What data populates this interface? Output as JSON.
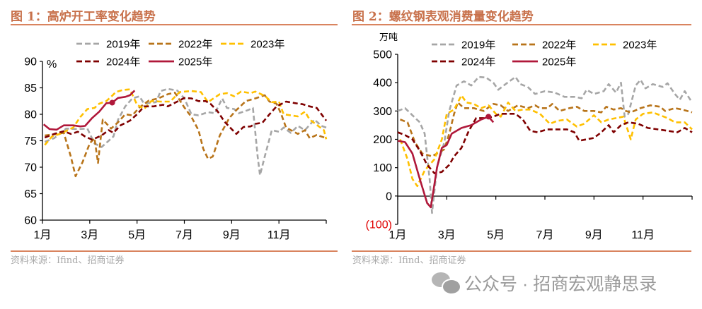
{
  "colors": {
    "2019": "#a6a6a6",
    "2022": "#b8741a",
    "2023": "#ffc000",
    "2024": "#7f0000",
    "2025": "#b0183a",
    "accent": "#c8714b",
    "negative_label": "#e00000"
  },
  "watermark": {
    "icon": "wechat-icon",
    "text": "公众号 · 招商宏观静思录"
  },
  "chart_data": [
    {
      "type": "line",
      "title": "图 1：高炉开工率变化趋势",
      "source": "资料来源：Ifind、招商证券",
      "ylabel": "%",
      "ylim": [
        60,
        90
      ],
      "yticks": [
        "60",
        "65",
        "70",
        "75",
        "80",
        "85",
        "90"
      ],
      "xlim": [
        1,
        13
      ],
      "xticks": [
        {
          "v": 1,
          "label": "1月"
        },
        {
          "v": 3,
          "label": "3月"
        },
        {
          "v": 5,
          "label": "5月"
        },
        {
          "v": 7,
          "label": "7月"
        },
        {
          "v": 9,
          "label": "9月"
        },
        {
          "v": 11,
          "label": "11月"
        }
      ],
      "legend": "top",
      "series": [
        {
          "name": "2019年",
          "key": "2019",
          "dash": true,
          "x": [
            1.1,
            1.5,
            2.0,
            2.5,
            2.9,
            3.2,
            3.5,
            3.8,
            4.0,
            4.2,
            4.5,
            4.8,
            5.1,
            5.3,
            5.8,
            6.0,
            6.3,
            6.7,
            7.0,
            7.3,
            7.6,
            8.0,
            8.3,
            8.6,
            8.8,
            9.1,
            9.3,
            9.7,
            9.9,
            10.1,
            10.2,
            10.4,
            10.7,
            11.0,
            11.2,
            11.5,
            11.8,
            12.1,
            12.5,
            12.8,
            13.0
          ],
          "y": [
            74.8,
            75.5,
            77.3,
            77.2,
            77.3,
            74.5,
            73.8,
            75,
            75.8,
            79,
            81.5,
            83,
            83.4,
            82,
            82.3,
            84.4,
            84.8,
            84.5,
            83,
            80,
            79.8,
            80.4,
            80.2,
            83,
            81.2,
            81,
            80.2,
            80.8,
            81.2,
            72,
            68.5,
            72,
            77,
            76.7,
            77.5,
            76.5,
            77.8,
            77,
            79,
            77.8,
            77.5
          ]
        },
        {
          "name": "2022年",
          "key": "2022",
          "dash": true,
          "x": [
            1.1,
            1.5,
            1.9,
            2.2,
            2.4,
            2.7,
            3.0,
            3.2,
            3.35,
            3.55,
            3.9,
            4.2,
            4.5,
            4.8,
            5.1,
            5.5,
            5.9,
            6.3,
            6.6,
            7.0,
            7.3,
            7.6,
            7.8,
            8.0,
            8.2,
            8.5,
            8.9,
            9.2,
            9.6,
            10.0,
            10.4,
            10.6,
            10.9,
            11.1,
            11.3,
            11.8,
            12.1,
            12.3,
            12.6,
            13.0
          ],
          "y": [
            76,
            76.2,
            76.5,
            72,
            68.3,
            71,
            74.5,
            75.5,
            70.8,
            79,
            77.3,
            78.5,
            80,
            79.8,
            81.3,
            82.6,
            83,
            83.8,
            84.1,
            81.3,
            79.5,
            77,
            73.5,
            71.6,
            72,
            76,
            79.3,
            80.8,
            82.5,
            83,
            83.6,
            82.4,
            82,
            80,
            77.5,
            76.3,
            77,
            75.5,
            76.1,
            75.5
          ]
        },
        {
          "name": "2023年",
          "key": "2023",
          "dash": true,
          "x": [
            1.1,
            1.4,
            1.8,
            2.3,
            2.6,
            2.9,
            3.2,
            3.4,
            3.7,
            3.9,
            4.1,
            4.4,
            4.7,
            5.0,
            5.3,
            5.6,
            6.0,
            6.4,
            6.8,
            7.3,
            7.7,
            8.0,
            8.2,
            8.5,
            8.8,
            9.1,
            9.4,
            9.8,
            10.0,
            10.4,
            10.7,
            11.0,
            11.2,
            11.5,
            11.8,
            12.1,
            12.3,
            12.6,
            12.9,
            13.0
          ],
          "y": [
            74.2,
            75.8,
            76.4,
            77.5,
            79.5,
            81,
            81.2,
            82,
            82.5,
            83.3,
            84.2,
            84.6,
            84.7,
            81.8,
            81,
            82.5,
            82.4,
            82.4,
            84.2,
            84.4,
            84.2,
            82.3,
            82.9,
            83.8,
            84,
            83.4,
            84.3,
            84,
            84.3,
            83.5,
            82.3,
            82.4,
            80,
            79.8,
            79.6,
            80.5,
            79,
            78,
            77,
            75.3
          ]
        },
        {
          "name": "2024年",
          "key": "2024",
          "dash": true,
          "x": [
            1.1,
            1.5,
            1.9,
            2.2,
            2.5,
            2.8,
            3.1,
            3.5,
            3.8,
            4.0,
            4.3,
            4.7,
            5.0,
            5.3,
            5.7,
            6.1,
            6.3,
            6.7,
            7.0,
            7.3,
            7.6,
            7.9,
            8.1,
            8.4,
            8.7,
            9.0,
            9.2,
            9.5,
            9.8,
            10.0,
            10.3,
            10.6,
            10.9,
            11.3,
            11.7,
            12.0,
            12.3,
            12.6,
            13.0
          ],
          "y": [
            75.6,
            76.3,
            76.8,
            76.3,
            76.7,
            75.8,
            75.2,
            76,
            77,
            76.5,
            77.9,
            78.8,
            80,
            81.5,
            81.5,
            81.8,
            81.5,
            82.4,
            83.1,
            83,
            82.5,
            82.5,
            82,
            80.6,
            78.6,
            77.2,
            76.3,
            77.6,
            77.7,
            78.2,
            78.4,
            80,
            81.5,
            82.4,
            82.1,
            81.9,
            81.5,
            81.2,
            78.8
          ]
        },
        {
          "name": "2025年",
          "key": "2025",
          "dash": false,
          "x": [
            1.05,
            1.3,
            1.6,
            1.9,
            2.3,
            2.6,
            2.8,
            3.1,
            3.4,
            3.7,
            3.95,
            4.2,
            4.5,
            4.7,
            4.9
          ],
          "y": [
            78.1,
            77.2,
            77.1,
            77.9,
            77.9,
            77.7,
            77.8,
            79.3,
            80.5,
            82.1,
            82.2,
            83.1,
            83.3,
            83.6,
            84.5
          ]
        }
      ]
    },
    {
      "type": "line",
      "title": "图 2：螺纹钢表观消费量变化趋势",
      "source": "资料来源：Ifind、招商证券",
      "ylabel": "万吨",
      "ylim": [
        -100,
        500
      ],
      "yticks": [
        "(100)",
        "0",
        "100",
        "200",
        "300",
        "400",
        "500"
      ],
      "xlim": [
        1,
        13
      ],
      "xticks": [
        {
          "v": 1,
          "label": "1月"
        },
        {
          "v": 3,
          "label": "3月"
        },
        {
          "v": 5,
          "label": "5月"
        },
        {
          "v": 7,
          "label": "7月"
        },
        {
          "v": 9,
          "label": "9月"
        },
        {
          "v": 11,
          "label": "11月"
        }
      ],
      "legend": "top",
      "series": [
        {
          "name": "2019年",
          "key": "2019",
          "dash": true,
          "x": [
            1.0,
            1.3,
            1.6,
            1.9,
            2.1,
            2.3,
            2.4,
            2.6,
            2.9,
            3.1,
            3.4,
            3.7,
            4.0,
            4.3,
            4.6,
            4.9,
            5.1,
            5.4,
            5.8,
            6.0,
            6.3,
            6.6,
            7.0,
            7.4,
            7.8,
            8.2,
            8.5,
            8.7,
            9.0,
            9.4,
            9.6,
            9.9,
            10.1,
            10.25,
            10.4,
            10.7,
            10.9,
            11.1,
            11.4,
            11.8,
            12.0,
            12.3,
            12.5,
            12.7,
            13.0
          ],
          "y": [
            300,
            310,
            285,
            260,
            220,
            60,
            -60,
            100,
            190,
            300,
            390,
            405,
            390,
            420,
            418,
            400,
            375,
            395,
            420,
            395,
            385,
            360,
            370,
            365,
            350,
            350,
            345,
            375,
            360,
            370,
            395,
            365,
            400,
            280,
            290,
            390,
            410,
            380,
            395,
            385,
            398,
            360,
            340,
            370,
            330
          ]
        },
        {
          "name": "2022年",
          "key": "2022",
          "dash": true,
          "x": [
            1.1,
            1.4,
            1.7,
            2.0,
            2.4,
            2.6,
            2.9,
            3.1,
            3.3,
            3.45,
            3.7,
            4.1,
            4.5,
            4.9,
            5.2,
            5.5,
            5.9,
            6.3,
            6.6,
            6.8,
            7.1,
            7.3,
            7.6,
            8.0,
            8.3,
            8.6,
            9.0,
            9.3,
            9.5,
            9.8,
            10.1,
            10.3,
            10.5,
            10.9,
            11.3,
            11.7,
            11.9,
            12.3,
            12.6,
            13.0
          ],
          "y": [
            270,
            260,
            190,
            150,
            140,
            150,
            165,
            220,
            290,
            330,
            310,
            310,
            300,
            325,
            320,
            300,
            320,
            310,
            320,
            310,
            310,
            325,
            300,
            310,
            315,
            300,
            300,
            295,
            315,
            305,
            310,
            300,
            295,
            310,
            320,
            315,
            300,
            310,
            305,
            295
          ]
        },
        {
          "name": "2023年",
          "key": "2023",
          "dash": true,
          "x": [
            1.1,
            1.4,
            1.6,
            1.8,
            2.1,
            2.5,
            2.8,
            3.0,
            3.3,
            3.6,
            3.8,
            4.1,
            4.4,
            4.7,
            5.0,
            5.2,
            5.5,
            5.8,
            6.1,
            6.4,
            6.8,
            7.2,
            7.5,
            7.9,
            8.3,
            8.6,
            9.0,
            9.3,
            9.6,
            9.9,
            10.2,
            10.5,
            10.7,
            11.0,
            11.4,
            11.7,
            12.0,
            12.3,
            12.7,
            13.0
          ],
          "y": [
            200,
            130,
            60,
            35,
            90,
            130,
            200,
            290,
            305,
            355,
            330,
            325,
            310,
            320,
            290,
            280,
            330,
            300,
            305,
            305,
            290,
            255,
            265,
            270,
            245,
            255,
            285,
            260,
            270,
            275,
            280,
            200,
            270,
            290,
            295,
            285,
            275,
            260,
            260,
            235
          ]
        },
        {
          "name": "2024年",
          "key": "2024",
          "dash": true,
          "x": [
            1.0,
            1.3,
            1.6,
            1.9,
            2.2,
            2.5,
            2.8,
            3.1,
            3.3,
            3.6,
            3.9,
            4.2,
            4.6,
            4.9,
            5.2,
            5.5,
            5.8,
            6.1,
            6.4,
            6.7,
            7.1,
            7.5,
            7.9,
            8.2,
            8.4,
            8.7,
            9.0,
            9.3,
            9.6,
            9.8,
            10.1,
            10.4,
            10.8,
            11.2,
            11.6,
            12.0,
            12.4,
            12.7,
            13.0
          ],
          "y": [
            225,
            215,
            200,
            160,
            110,
            80,
            85,
            110,
            140,
            170,
            230,
            275,
            275,
            280,
            290,
            290,
            290,
            270,
            230,
            225,
            235,
            235,
            235,
            225,
            195,
            200,
            205,
            225,
            250,
            225,
            250,
            260,
            255,
            240,
            235,
            230,
            225,
            240,
            225
          ]
        },
        {
          "name": "2025年",
          "key": "2025",
          "dash": false,
          "x": [
            1.0,
            1.3,
            1.6,
            1.9,
            2.2,
            2.35,
            2.6,
            2.8,
            3.0,
            3.2,
            3.6,
            4.0,
            4.4,
            4.7,
            4.9
          ],
          "y": [
            195,
            190,
            150,
            60,
            -25,
            -40,
            100,
            170,
            180,
            220,
            240,
            250,
            270,
            280,
            260
          ]
        }
      ]
    }
  ]
}
